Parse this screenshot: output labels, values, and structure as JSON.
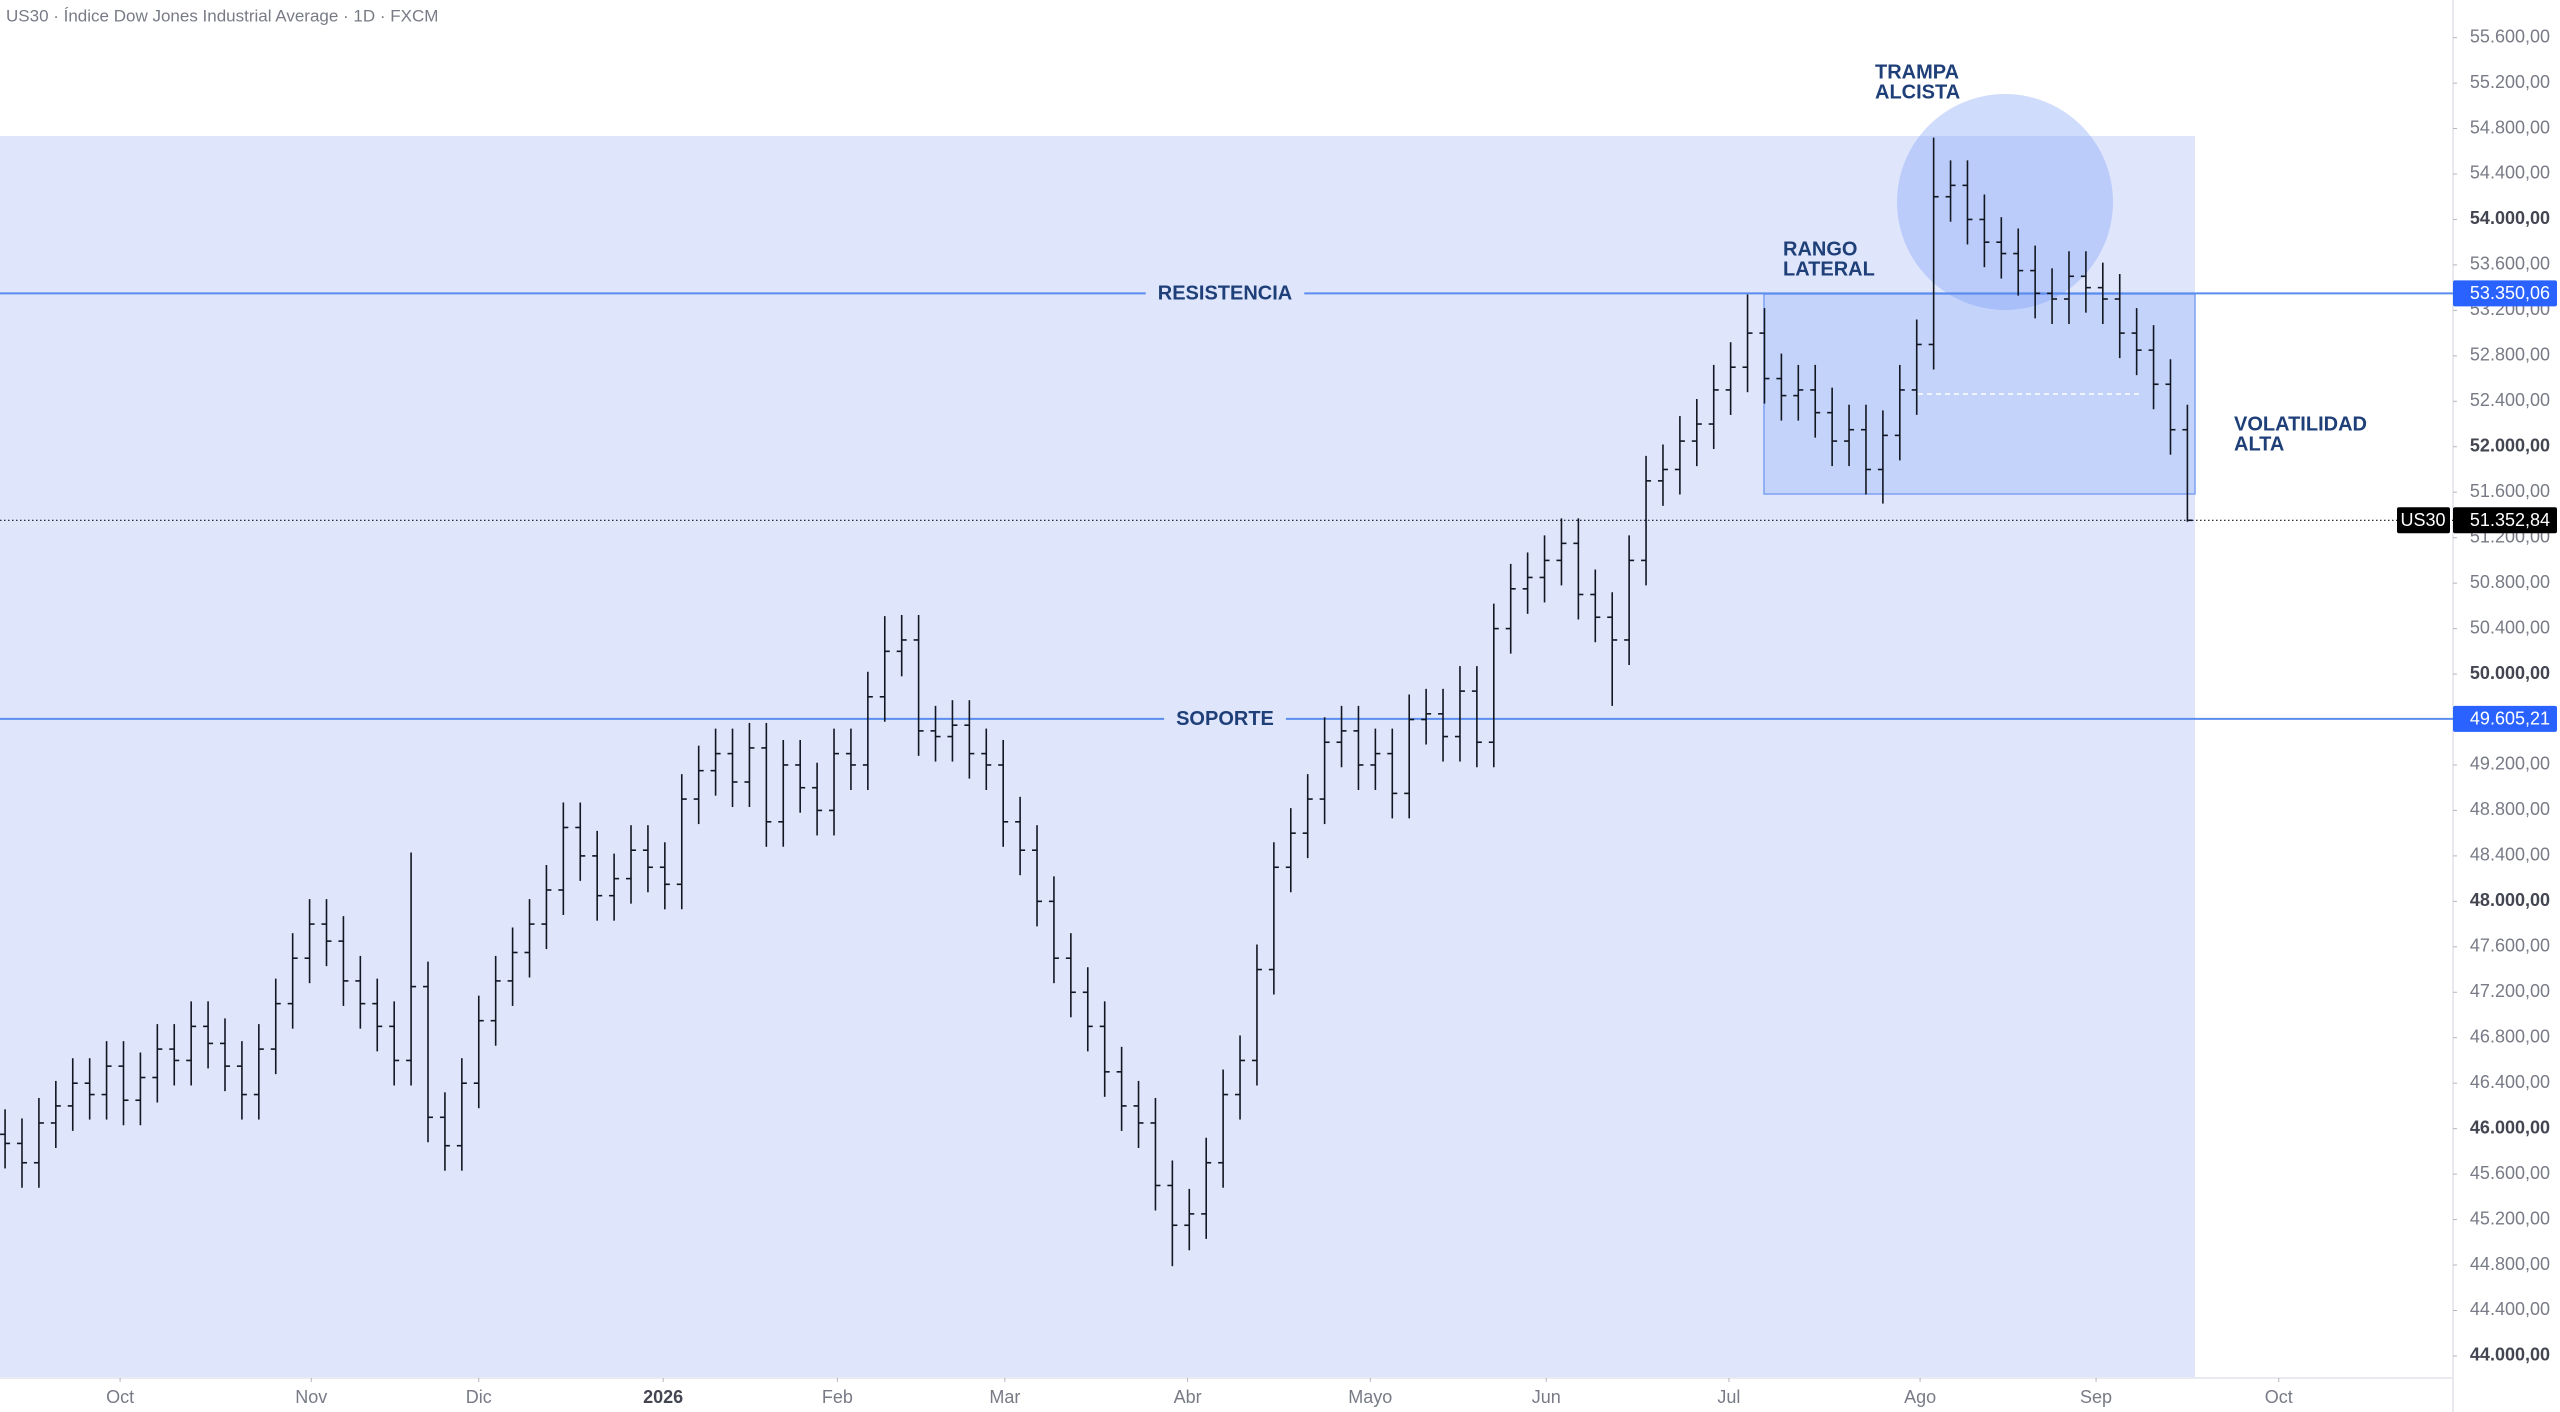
{
  "chart_data": {
    "type": "ohlc",
    "title": "US30 · Índice Dow Jones Industrial Average · 1D · FXCM",
    "color": "#131722",
    "xlim": [
      -0.3,
      144.7
    ],
    "ylim": [
      43806,
      55931
    ],
    "xticks": [
      {
        "value": 6.8,
        "label": "Oct"
      },
      {
        "value": 18.1,
        "label": "Nov"
      },
      {
        "value": 28.0,
        "label": "Dic"
      },
      {
        "value": 38.9,
        "label": "2026"
      },
      {
        "value": 49.2,
        "label": "Feb"
      },
      {
        "value": 59.1,
        "label": "Mar"
      },
      {
        "value": 69.9,
        "label": "Abr"
      },
      {
        "value": 80.7,
        "label": "Mayo"
      },
      {
        "value": 91.1,
        "label": "Jun"
      },
      {
        "value": 101.9,
        "label": "Jul"
      },
      {
        "value": 113.2,
        "label": "Ago"
      },
      {
        "value": 123.6,
        "label": "Sep"
      },
      {
        "value": 134.4,
        "label": "Oct"
      }
    ],
    "yticks": [
      {
        "value": 44000,
        "label": "44.000,00"
      },
      {
        "value": 44400,
        "label": "44.400,00"
      },
      {
        "value": 44800,
        "label": "44.800,00"
      },
      {
        "value": 45200,
        "label": "45.200,00"
      },
      {
        "value": 45600,
        "label": "45.600,00"
      },
      {
        "value": 46000,
        "label": "46.000,00"
      },
      {
        "value": 46400,
        "label": "46.400,00"
      },
      {
        "value": 46800,
        "label": "46.800,00"
      },
      {
        "value": 47200,
        "label": "47.200,00"
      },
      {
        "value": 47600,
        "label": "47.600,00"
      },
      {
        "value": 48000,
        "label": "48.000,00"
      },
      {
        "value": 48400,
        "label": "48.400,00"
      },
      {
        "value": 48800,
        "label": "48.800,00"
      },
      {
        "value": 49200,
        "label": "49.200,00"
      },
      {
        "value": 49600,
        "label": "49.600,00"
      },
      {
        "value": 50000,
        "label": "50.000,00"
      },
      {
        "value": 50400,
        "label": "50.400,00"
      },
      {
        "value": 50800,
        "label": "50.800,00"
      },
      {
        "value": 51200,
        "label": "51.200,00"
      },
      {
        "value": 51600,
        "label": "51.600,00"
      },
      {
        "value": 52000,
        "label": "52.000,00"
      },
      {
        "value": 52400,
        "label": "52.400,00"
      },
      {
        "value": 52800,
        "label": "52.800,00"
      },
      {
        "value": 53200,
        "label": "53.200,00"
      },
      {
        "value": 53600,
        "label": "53.600,00"
      },
      {
        "value": 54000,
        "label": "54.000,00"
      },
      {
        "value": 54400,
        "label": "54.400,00"
      },
      {
        "value": 54800,
        "label": "54.800,00"
      },
      {
        "value": 55200,
        "label": "55.200,00"
      },
      {
        "value": 55600,
        "label": "55.600,00"
      }
    ],
    "x": [
      0,
      1,
      2,
      3,
      4,
      5,
      6,
      7,
      8,
      9,
      10,
      11,
      12,
      13,
      14,
      15,
      16,
      17,
      18,
      19,
      20,
      21,
      22,
      23,
      24,
      25,
      26,
      27,
      28,
      29,
      30,
      31,
      32,
      33,
      34,
      35,
      36,
      37,
      38,
      39,
      40,
      41,
      42,
      43,
      44,
      45,
      46,
      47,
      48,
      49,
      50,
      51,
      52,
      53,
      54,
      55,
      56,
      57,
      58,
      59,
      60,
      61,
      62,
      63,
      64,
      65,
      66,
      67,
      68,
      69,
      70,
      71,
      72,
      73,
      74,
      75,
      76,
      77,
      78,
      79,
      80,
      81,
      82,
      83,
      84,
      85,
      86,
      87,
      88,
      89,
      90,
      91,
      92,
      93,
      94,
      95,
      96,
      97,
      98,
      99,
      100,
      101,
      102,
      103,
      104,
      105,
      106,
      107,
      108,
      109,
      110,
      111,
      112,
      113,
      114,
      115,
      116,
      117,
      118,
      119,
      120,
      121,
      122,
      123,
      124,
      125,
      126,
      127,
      128,
      129
    ],
    "open": [
      45950,
      45870,
      45700,
      46050,
      46200,
      46400,
      46300,
      46550,
      46250,
      46450,
      46700,
      46600,
      46900,
      46750,
      46550,
      46300,
      46700,
      47100,
      47500,
      47800,
      47650,
      47300,
      47100,
      46900,
      46600,
      47250,
      46100,
      45850,
      46400,
      46950,
      47300,
      47550,
      47800,
      48100,
      48650,
      48400,
      48050,
      48200,
      48450,
      48300,
      48150,
      48900,
      49150,
      49300,
      49050,
      49350,
      48700,
      49200,
      49000,
      48800,
      49300,
      49200,
      49800,
      50200,
      50300,
      49500,
      49450,
      49550,
      49300,
      49200,
      48700,
      48450,
      48000,
      47500,
      47200,
      46900,
      46500,
      46200,
      46050,
      45500,
      45150,
      45250,
      45700,
      46300,
      46600,
      47400,
      48300,
      48600,
      48900,
      49400,
      49500,
      49200,
      49300,
      48950,
      49600,
      49650,
      49450,
      49850,
      49400,
      50400,
      50750,
      50850,
      51000,
      51150,
      50700,
      50500,
      50300,
      51000,
      51700,
      51800,
      52050,
      52200,
      52500,
      52700,
      53000,
      52600,
      52450,
      52500,
      52300,
      52050,
      52150,
      51800,
      52100,
      52500,
      52900,
      54200,
      54300,
      54000,
      53800,
      53700,
      53550,
      53350,
      53300,
      53500,
      53400,
      53300,
      53000,
      52850,
      52550,
      52150
    ],
    "high": [
      46170,
      46090,
      46270,
      46420,
      46620,
      46620,
      46770,
      46770,
      46670,
      46920,
      46920,
      47120,
      47120,
      46970,
      46770,
      46920,
      47320,
      47720,
      48020,
      48020,
      47870,
      47520,
      47320,
      47120,
      48430,
      47470,
      46320,
      46620,
      47170,
      47520,
      47770,
      48020,
      48320,
      48870,
      48870,
      48620,
      48420,
      48670,
      48670,
      48520,
      49120,
      49370,
      49520,
      49520,
      49570,
      49570,
      49420,
      49420,
      49220,
      49520,
      49520,
      50020,
      50510,
      50520,
      50520,
      49720,
      49770,
      49770,
      49520,
      49420,
      48920,
      48670,
      48220,
      47720,
      47420,
      47120,
      46720,
      46420,
      46270,
      45720,
      45470,
      45920,
      46520,
      46820,
      47620,
      48520,
      48820,
      49120,
      49620,
      49720,
      49720,
      49520,
      49520,
      49820,
      49870,
      49870,
      50070,
      50070,
      50620,
      50970,
      51070,
      51220,
      51370,
      51370,
      50920,
      50720,
      51220,
      51920,
      52020,
      52270,
      52420,
      52720,
      52920,
      53340,
      53220,
      52820,
      52720,
      52720,
      52520,
      52370,
      52370,
      52320,
      52720,
      53120,
      54720,
      54520,
      54520,
      54220,
      54020,
      53920,
      53770,
      53570,
      53720,
      53720,
      53620,
      53520,
      53220,
      53070,
      52770,
      52370
    ],
    "low": [
      45650,
      45480,
      45480,
      45830,
      45980,
      46080,
      46080,
      46030,
      46030,
      46230,
      46380,
      46380,
      46530,
      46330,
      46080,
      46080,
      46480,
      46880,
      47280,
      47430,
      47080,
      46880,
      46680,
      46380,
      46380,
      45880,
      45630,
      45630,
      46180,
      46730,
      47080,
      47330,
      47580,
      47880,
      48180,
      47830,
      47830,
      47980,
      48080,
      47930,
      47930,
      48680,
      48930,
      48830,
      48830,
      48480,
      48480,
      48780,
      48580,
      48580,
      48980,
      48980,
      49580,
      49980,
      49280,
      49230,
      49230,
      49080,
      48980,
      48480,
      48230,
      47780,
      47280,
      46980,
      46680,
      46280,
      45980,
      45830,
      45280,
      44790,
      44930,
      45030,
      45480,
      46080,
      46380,
      47180,
      48080,
      48380,
      48680,
      49180,
      48980,
      48980,
      48730,
      48730,
      49380,
      49230,
      49230,
      49180,
      49180,
      50180,
      50530,
      50630,
      50780,
      50480,
      50280,
      49720,
      50080,
      50780,
      51480,
      51580,
      51830,
      51980,
      52280,
      52480,
      52380,
      52230,
      52230,
      52080,
      51830,
      51830,
      51580,
      51500,
      51880,
      52280,
      52680,
      53980,
      53780,
      53580,
      53480,
      53330,
      53130,
      53080,
      53080,
      53180,
      53080,
      52780,
      52630,
      52330,
      51930,
      51340
    ],
    "close": [
      45870,
      45700,
      46050,
      46200,
      46400,
      46300,
      46550,
      46250,
      46450,
      46700,
      46600,
      46900,
      46750,
      46550,
      46300,
      46700,
      47100,
      47500,
      47800,
      47650,
      47300,
      47100,
      46900,
      46600,
      47250,
      46100,
      45850,
      46400,
      46950,
      47300,
      47550,
      47800,
      48100,
      48650,
      48400,
      48050,
      48200,
      48450,
      48300,
      48150,
      48900,
      49150,
      49300,
      49050,
      49350,
      48700,
      49200,
      49000,
      48800,
      49300,
      49200,
      49800,
      50200,
      50300,
      49500,
      49450,
      49550,
      49300,
      49200,
      48700,
      48450,
      48000,
      47500,
      47200,
      46900,
      46500,
      46200,
      46050,
      45500,
      45150,
      45250,
      45700,
      46300,
      46600,
      47400,
      48300,
      48600,
      48900,
      49400,
      49500,
      49200,
      49300,
      48950,
      49600,
      49650,
      49450,
      49850,
      49400,
      50400,
      50750,
      50850,
      51000,
      51150,
      50700,
      50500,
      50300,
      51000,
      51700,
      51800,
      52050,
      52200,
      52500,
      52700,
      53000,
      52600,
      52450,
      52500,
      52300,
      52050,
      52150,
      51800,
      52100,
      52500,
      52900,
      54200,
      54300,
      54000,
      53800,
      53700,
      53550,
      53350,
      53300,
      53500,
      53400,
      53300,
      53000,
      52850,
      52550,
      52150,
      51352.84
    ],
    "levels": [
      {
        "name": "RESISTENCIA",
        "value": 53350.06,
        "label": "53.350,06",
        "color": "#5b8def"
      },
      {
        "name": "SOPORTE",
        "value": 49605.21,
        "label": "49.605,21",
        "color": "#5b8def"
      }
    ],
    "last": {
      "symbol": "US30",
      "value": 51352.84,
      "label": "51.352,84"
    },
    "annotations": [
      {
        "lines": [
          "TRAMPA",
          "ALCISTA"
        ]
      },
      {
        "lines": [
          "RANGO",
          "LATERAL"
        ]
      },
      {
        "lines": [
          "VOLATILIDAD",
          "ALTA"
        ]
      }
    ]
  }
}
